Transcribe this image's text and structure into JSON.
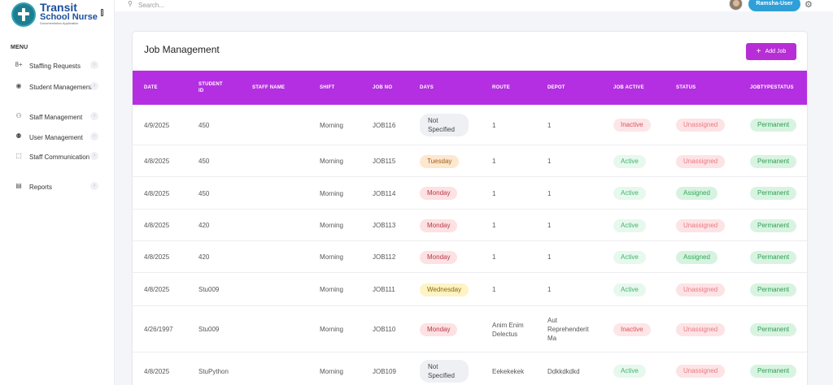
{
  "logo": {
    "line1": "Transit",
    "line2": "School Nurse",
    "line3": "Documentation Application"
  },
  "sidebar": {
    "menu_label": "MENU",
    "items": [
      {
        "label": "Staffing Requests",
        "icon": "user-plus-icon",
        "glyph": "8+"
      },
      {
        "label": "Student Management",
        "icon": "student-icon",
        "glyph": "◉"
      },
      {
        "label": "Staff Management",
        "icon": "staff-icon",
        "glyph": "⚇"
      },
      {
        "label": "User Management",
        "icon": "users-icon",
        "glyph": "⚉"
      },
      {
        "label": "Staff Communication",
        "icon": "chat-icon",
        "glyph": "⬚"
      },
      {
        "label": "Reports",
        "icon": "reports-icon",
        "glyph": "▤"
      }
    ],
    "chevron": "›"
  },
  "topbar": {
    "search_placeholder": "Search...",
    "search_value": "",
    "user_name": "Ramsha-User"
  },
  "main": {
    "title": "Job Management",
    "add_button_label": "Add Job",
    "columns": [
      "DATE",
      "STUDENT ID",
      "STAFF NAME",
      "SHIFT",
      "JOB NO",
      "DAYS",
      "ROUTE",
      "DEPOT",
      "JOB ACTIVE",
      "STATUS",
      "JOBTYPESTATUS"
    ],
    "rows": [
      {
        "date": "4/9/2025",
        "student_id": "450",
        "staff_name": "",
        "shift": "Morning",
        "job_no": "JOB116",
        "days": "Not Specified",
        "route": "1",
        "depot": "1",
        "job_active": "Inactive",
        "status": "Unassigned",
        "job_type_status": "Permanent"
      },
      {
        "date": "4/8/2025",
        "student_id": "450",
        "staff_name": "",
        "shift": "Morning",
        "job_no": "JOB115",
        "days": "Tuesday",
        "route": "1",
        "depot": "1",
        "job_active": "Active",
        "status": "Unassigned",
        "job_type_status": "Permanent"
      },
      {
        "date": "4/8/2025",
        "student_id": "450",
        "staff_name": "",
        "shift": "Morning",
        "job_no": "JOB114",
        "days": "Monday",
        "route": "1",
        "depot": "1",
        "job_active": "Active",
        "status": "Assigned",
        "job_type_status": "Permanent"
      },
      {
        "date": "4/8/2025",
        "student_id": "420",
        "staff_name": "",
        "shift": "Morning",
        "job_no": "JOB113",
        "days": "Monday",
        "route": "1",
        "depot": "1",
        "job_active": "Active",
        "status": "Unassigned",
        "job_type_status": "Permanent"
      },
      {
        "date": "4/8/2025",
        "student_id": "420",
        "staff_name": "",
        "shift": "Morning",
        "job_no": "JOB112",
        "days": "Monday",
        "route": "1",
        "depot": "1",
        "job_active": "Active",
        "status": "Assigned",
        "job_type_status": "Permanent"
      },
      {
        "date": "4/8/2025",
        "student_id": "Stu009",
        "staff_name": "",
        "shift": "Morning",
        "job_no": "JOB111",
        "days": "Wednesday",
        "route": "1",
        "depot": "1",
        "job_active": "Active",
        "status": "Unassigned",
        "job_type_status": "Permanent"
      },
      {
        "date": "4/26/1997",
        "student_id": "Stu009",
        "staff_name": "",
        "shift": "Morning",
        "job_no": "JOB110",
        "days": "Monday",
        "route": "Anim Enim Delectus",
        "depot": "Aut Reprehenderit Ma",
        "job_active": "Inactive",
        "status": "Unassigned",
        "job_type_status": "Permanent"
      },
      {
        "date": "4/8/2025",
        "student_id": "StuPython",
        "staff_name": "",
        "shift": "Morning",
        "job_no": "JOB109",
        "days": "Not Specified",
        "route": "Eekekekek",
        "depot": "Ddkkdkdkd",
        "job_active": "Active",
        "status": "Unassigned",
        "job_type_status": "Permanent"
      }
    ]
  },
  "colors": {
    "accent": "#b42fe1",
    "button": "#b72ed6",
    "user_pill": "#2f9fd8",
    "active_bg": "#e7f8ee",
    "active_fg": "#3fb66a",
    "inactive_bg": "#fde6e8",
    "inactive_fg": "#e0515c",
    "assigned_bg": "#d6f3df",
    "assigned_fg": "#35a85d",
    "unassigned_bg": "#fde3e5",
    "unassigned_fg": "#e97a83",
    "permanent_bg": "#d8f4e0",
    "permanent_fg": "#2e9d57",
    "day_grey_bg": "#eef0f4",
    "day_grey_fg": "#444",
    "day_orange_bg": "#fde7cf",
    "day_orange_fg": "#a15d1a",
    "day_red_bg": "#fde1e3",
    "day_red_fg": "#b43a44",
    "day_yellow_bg": "#fdf3c4",
    "day_yellow_fg": "#8a6b08"
  }
}
